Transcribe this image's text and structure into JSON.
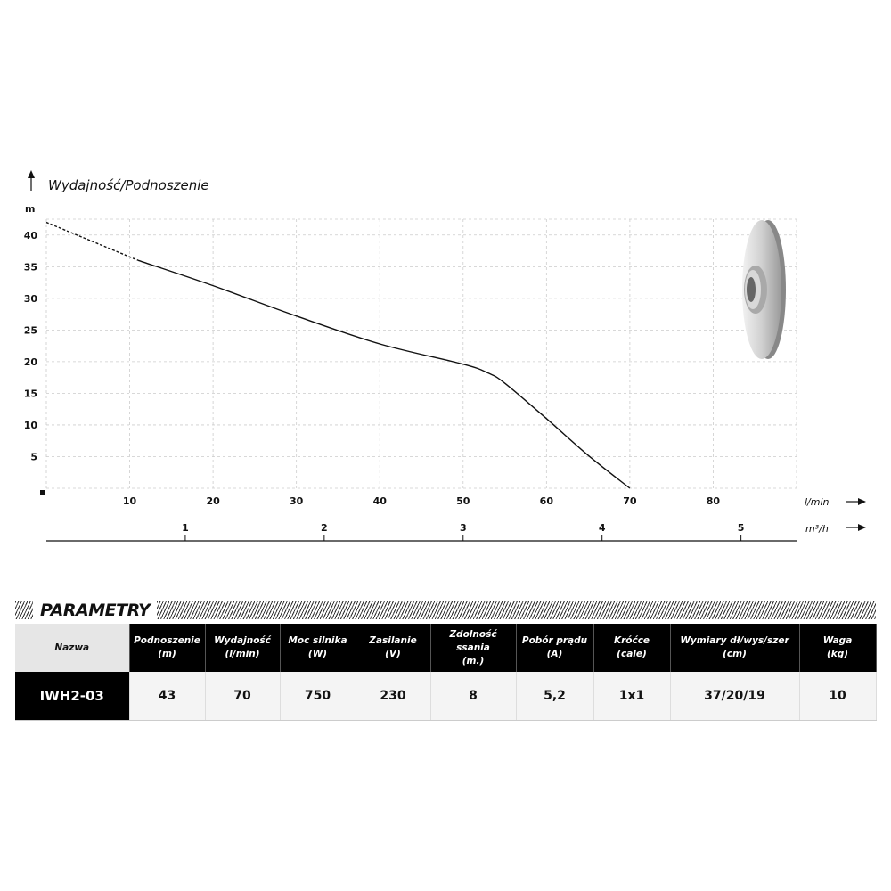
{
  "chart_data": {
    "type": "line",
    "title": "Wydajność/Podnoszenie",
    "ylabel": "m",
    "xlabel": "l/min",
    "x2label": "m³/h",
    "xlim": [
      0,
      90
    ],
    "ylim": [
      0,
      42.5
    ],
    "x_ticks": [
      10,
      20,
      30,
      40,
      50,
      60,
      70,
      80
    ],
    "y_ticks": [
      5,
      10,
      15,
      20,
      25,
      30,
      35,
      40
    ],
    "x2_ticks": [
      1,
      2,
      3,
      4,
      5
    ],
    "grid": true,
    "series": [
      {
        "style": "dashed",
        "x": [
          0,
          11
        ],
        "y": [
          42,
          36
        ]
      },
      {
        "style": "solid",
        "x": [
          11,
          20,
          30,
          40,
          50,
          53,
          55,
          60,
          65,
          70
        ],
        "y": [
          36,
          32,
          27.2,
          22.8,
          19.6,
          18.2,
          16.6,
          11,
          5.2,
          0
        ]
      }
    ]
  },
  "params": {
    "title": "PARAMETRY",
    "headers": [
      [
        "Nazwa",
        ""
      ],
      [
        "Podnoszenie",
        "(m)"
      ],
      [
        "Wydajność",
        "(l/min)"
      ],
      [
        "Moc silnika",
        "(W)"
      ],
      [
        "Zasilanie",
        "(V)"
      ],
      [
        "Zdolność ssania",
        "(m.)"
      ],
      [
        "Pobór prądu",
        "(A)"
      ],
      [
        "Króćce",
        "(cale)"
      ],
      [
        "Wymiary dł/wys/szer",
        "(cm)"
      ],
      [
        "Waga",
        "(kg)"
      ]
    ],
    "row": [
      "IWH2-03",
      "43",
      "70",
      "750",
      "230",
      "8",
      "5,2",
      "1x1",
      "37/20/19",
      "10"
    ]
  }
}
